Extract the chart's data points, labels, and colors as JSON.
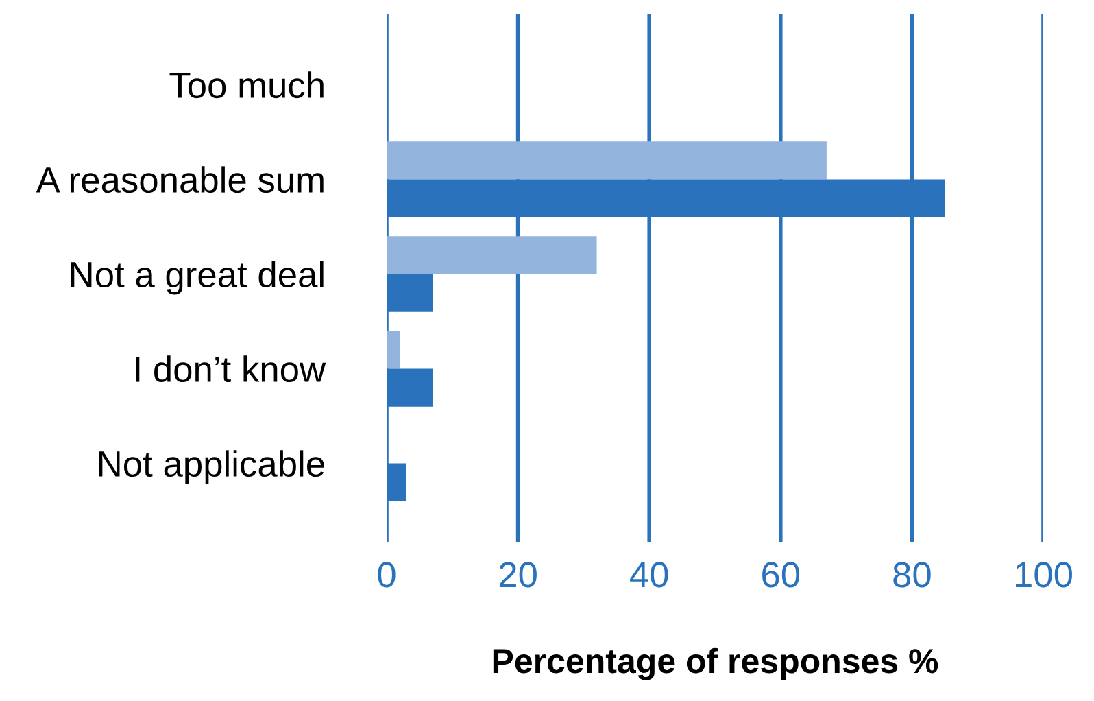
{
  "chart_data": {
    "type": "bar",
    "orientation": "horizontal",
    "xlabel": "Percentage of responses %",
    "categories": [
      "Too much",
      "A reasonable sum",
      "Not a great deal",
      "I don’t know",
      "Not applicable"
    ],
    "series": [
      {
        "color": "#93b4dc",
        "values": [
          0,
          67,
          32,
          2,
          0
        ]
      },
      {
        "color": "#2a72bc",
        "values": [
          0,
          85,
          7,
          7,
          3
        ]
      }
    ],
    "xlim": [
      0,
      100
    ],
    "xticks": [
      0,
      20,
      40,
      60,
      80,
      100
    ],
    "grid": "x",
    "legend": false
  }
}
